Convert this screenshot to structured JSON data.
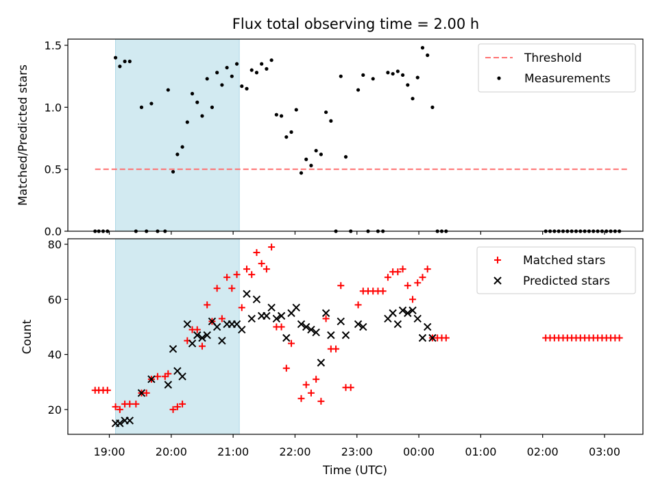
{
  "chart_data": {
    "title": "Flux total observing time = 2.00 h",
    "x_tick_labels": [
      "19:00",
      "20:00",
      "21:00",
      "22:00",
      "23:00",
      "00:00",
      "01:00",
      "02:00",
      "03:00"
    ],
    "x_tick_hours": [
      0,
      1,
      2,
      3,
      4,
      5,
      6,
      7,
      8
    ],
    "x_origin": "19:00",
    "xlabel": "Time (UTC)",
    "xlim_hours_from_19": [
      -0.67,
      8.62
    ],
    "shaded_interval_hours": [
      0.1,
      2.1
    ],
    "shaded_color": "#add8e6",
    "top": {
      "type": "scatter",
      "ylabel": "Matched/Predicted stars",
      "ylim": [
        0,
        1.55
      ],
      "y_ticks": [
        0.0,
        0.5,
        1.0,
        1.5
      ],
      "y_tick_labels": [
        "0.0",
        "0.5",
        "1.0",
        "1.5"
      ],
      "threshold": {
        "label": "Threshold",
        "value": 0.5,
        "x_range": [
          -0.23,
          8.4
        ],
        "color": "#ff7070"
      },
      "measurements": {
        "label": "Measurements",
        "color": "#000000",
        "points": [
          [
            -0.23,
            0
          ],
          [
            -0.17,
            0
          ],
          [
            -0.1,
            0
          ],
          [
            -0.03,
            0
          ],
          [
            0.1,
            1.4
          ],
          [
            0.17,
            1.33
          ],
          [
            0.25,
            1.37
          ],
          [
            0.33,
            1.37
          ],
          [
            0.43,
            0
          ],
          [
            0.52,
            1.0
          ],
          [
            0.6,
            0
          ],
          [
            0.68,
            1.03
          ],
          [
            0.78,
            0
          ],
          [
            0.9,
            0
          ],
          [
            0.95,
            1.14
          ],
          [
            1.03,
            0.48
          ],
          [
            1.1,
            0.62
          ],
          [
            1.18,
            0.68
          ],
          [
            1.26,
            0.88
          ],
          [
            1.34,
            1.11
          ],
          [
            1.42,
            1.04
          ],
          [
            1.5,
            0.93
          ],
          [
            1.58,
            1.23
          ],
          [
            1.66,
            1.0
          ],
          [
            1.74,
            1.28
          ],
          [
            1.82,
            1.18
          ],
          [
            1.9,
            1.32
          ],
          [
            1.98,
            1.25
          ],
          [
            2.06,
            1.35
          ],
          [
            2.14,
            1.17
          ],
          [
            2.22,
            1.15
          ],
          [
            2.3,
            1.3
          ],
          [
            2.38,
            1.28
          ],
          [
            2.46,
            1.35
          ],
          [
            2.54,
            1.31
          ],
          [
            2.62,
            1.38
          ],
          [
            2.7,
            0.94
          ],
          [
            2.78,
            0.93
          ],
          [
            2.86,
            0.76
          ],
          [
            2.94,
            0.8
          ],
          [
            3.02,
            0.98
          ],
          [
            3.1,
            0.47
          ],
          [
            3.18,
            0.58
          ],
          [
            3.26,
            0.53
          ],
          [
            3.34,
            0.65
          ],
          [
            3.42,
            0.62
          ],
          [
            3.5,
            0.96
          ],
          [
            3.58,
            0.89
          ],
          [
            3.66,
            0
          ],
          [
            3.74,
            1.25
          ],
          [
            3.82,
            0.6
          ],
          [
            3.9,
            0
          ],
          [
            4.02,
            1.14
          ],
          [
            4.1,
            1.26
          ],
          [
            4.18,
            0
          ],
          [
            4.26,
            1.23
          ],
          [
            4.34,
            0
          ],
          [
            4.42,
            0
          ],
          [
            4.5,
            1.28
          ],
          [
            4.58,
            1.27
          ],
          [
            4.66,
            1.29
          ],
          [
            4.74,
            1.26
          ],
          [
            4.82,
            1.18
          ],
          [
            4.9,
            1.07
          ],
          [
            4.98,
            1.24
          ],
          [
            5.06,
            1.48
          ],
          [
            5.14,
            1.42
          ],
          [
            5.22,
            1.0
          ],
          [
            5.3,
            0
          ],
          [
            5.37,
            0
          ],
          [
            5.44,
            0
          ],
          [
            7.05,
            0
          ],
          [
            7.12,
            0
          ],
          [
            7.19,
            0
          ],
          [
            7.26,
            0
          ],
          [
            7.33,
            0
          ],
          [
            7.4,
            0
          ],
          [
            7.47,
            0
          ],
          [
            7.54,
            0
          ],
          [
            7.61,
            0
          ],
          [
            7.68,
            0
          ],
          [
            7.75,
            0
          ],
          [
            7.82,
            0
          ],
          [
            7.89,
            0
          ],
          [
            7.96,
            0
          ],
          [
            8.03,
            0
          ],
          [
            8.1,
            0
          ],
          [
            8.17,
            0
          ],
          [
            8.24,
            0
          ]
        ]
      }
    },
    "bottom": {
      "type": "scatter",
      "ylabel": "Count",
      "ylim": [
        11,
        82
      ],
      "y_ticks": [
        20,
        40,
        60,
        80
      ],
      "y_tick_labels": [
        "20",
        "40",
        "60",
        "80"
      ],
      "series": [
        {
          "name": "Matched stars",
          "marker": "+",
          "color": "#ff0000",
          "points": [
            [
              -0.23,
              27
            ],
            [
              -0.17,
              27
            ],
            [
              -0.1,
              27
            ],
            [
              -0.03,
              27
            ],
            [
              0.1,
              21
            ],
            [
              0.17,
              20
            ],
            [
              0.25,
              22
            ],
            [
              0.33,
              22
            ],
            [
              0.43,
              22
            ],
            [
              0.52,
              26
            ],
            [
              0.6,
              26
            ],
            [
              0.68,
              31
            ],
            [
              0.78,
              32
            ],
            [
              0.9,
              32
            ],
            [
              0.95,
              33
            ],
            [
              1.03,
              20
            ],
            [
              1.1,
              21
            ],
            [
              1.18,
              22
            ],
            [
              1.26,
              45
            ],
            [
              1.34,
              49
            ],
            [
              1.42,
              49
            ],
            [
              1.5,
              43
            ],
            [
              1.58,
              58
            ],
            [
              1.66,
              52
            ],
            [
              1.74,
              64
            ],
            [
              1.82,
              53
            ],
            [
              1.9,
              68
            ],
            [
              1.98,
              64
            ],
            [
              2.06,
              69
            ],
            [
              2.14,
              57
            ],
            [
              2.22,
              71
            ],
            [
              2.3,
              69
            ],
            [
              2.38,
              77
            ],
            [
              2.46,
              73
            ],
            [
              2.54,
              71
            ],
            [
              2.62,
              79
            ],
            [
              2.7,
              50
            ],
            [
              2.78,
              50
            ],
            [
              2.86,
              35
            ],
            [
              2.94,
              44
            ],
            [
              3.1,
              24
            ],
            [
              3.18,
              29
            ],
            [
              3.26,
              26
            ],
            [
              3.34,
              31
            ],
            [
              3.42,
              23
            ],
            [
              3.5,
              53
            ],
            [
              3.58,
              42
            ],
            [
              3.66,
              42
            ],
            [
              3.74,
              65
            ],
            [
              3.82,
              28
            ],
            [
              3.9,
              28
            ],
            [
              4.02,
              58
            ],
            [
              4.1,
              63
            ],
            [
              4.18,
              63
            ],
            [
              4.26,
              63
            ],
            [
              4.34,
              63
            ],
            [
              4.42,
              63
            ],
            [
              4.5,
              68
            ],
            [
              4.58,
              70
            ],
            [
              4.66,
              70
            ],
            [
              4.74,
              71
            ],
            [
              4.82,
              65
            ],
            [
              4.9,
              60
            ],
            [
              4.98,
              66
            ],
            [
              5.06,
              68
            ],
            [
              5.14,
              71
            ],
            [
              5.22,
              46
            ],
            [
              5.3,
              46
            ],
            [
              5.37,
              46
            ],
            [
              5.44,
              46
            ],
            [
              7.05,
              46
            ],
            [
              7.12,
              46
            ],
            [
              7.19,
              46
            ],
            [
              7.26,
              46
            ],
            [
              7.33,
              46
            ],
            [
              7.4,
              46
            ],
            [
              7.47,
              46
            ],
            [
              7.54,
              46
            ],
            [
              7.61,
              46
            ],
            [
              7.68,
              46
            ],
            [
              7.75,
              46
            ],
            [
              7.82,
              46
            ],
            [
              7.89,
              46
            ],
            [
              7.96,
              46
            ],
            [
              8.03,
              46
            ],
            [
              8.1,
              46
            ],
            [
              8.17,
              46
            ],
            [
              8.24,
              46
            ]
          ]
        },
        {
          "name": "Predicted stars",
          "marker": "x",
          "color": "#000000",
          "points": [
            [
              0.1,
              15
            ],
            [
              0.17,
              15
            ],
            [
              0.25,
              16
            ],
            [
              0.33,
              16
            ],
            [
              0.52,
              26
            ],
            [
              0.68,
              31
            ],
            [
              0.95,
              29
            ],
            [
              1.03,
              42
            ],
            [
              1.1,
              34
            ],
            [
              1.18,
              32
            ],
            [
              1.26,
              51
            ],
            [
              1.34,
              44
            ],
            [
              1.42,
              47
            ],
            [
              1.5,
              46
            ],
            [
              1.58,
              47
            ],
            [
              1.66,
              52
            ],
            [
              1.74,
              50
            ],
            [
              1.82,
              45
            ],
            [
              1.9,
              51
            ],
            [
              1.98,
              51
            ],
            [
              2.06,
              51
            ],
            [
              2.14,
              49
            ],
            [
              2.22,
              62
            ],
            [
              2.3,
              53
            ],
            [
              2.38,
              60
            ],
            [
              2.46,
              54
            ],
            [
              2.54,
              54
            ],
            [
              2.62,
              57
            ],
            [
              2.7,
              53
            ],
            [
              2.78,
              54
            ],
            [
              2.86,
              46
            ],
            [
              2.94,
              55
            ],
            [
              3.02,
              57
            ],
            [
              3.1,
              51
            ],
            [
              3.18,
              50
            ],
            [
              3.26,
              49
            ],
            [
              3.34,
              48
            ],
            [
              3.42,
              37
            ],
            [
              3.5,
              55
            ],
            [
              3.58,
              47
            ],
            [
              3.74,
              52
            ],
            [
              3.82,
              47
            ],
            [
              4.02,
              51
            ],
            [
              4.1,
              50
            ],
            [
              4.5,
              53
            ],
            [
              4.58,
              55
            ],
            [
              4.66,
              51
            ],
            [
              4.74,
              56
            ],
            [
              4.82,
              55
            ],
            [
              4.9,
              56
            ],
            [
              4.98,
              53
            ],
            [
              5.06,
              46
            ],
            [
              5.14,
              50
            ],
            [
              5.22,
              46
            ]
          ]
        }
      ]
    }
  }
}
